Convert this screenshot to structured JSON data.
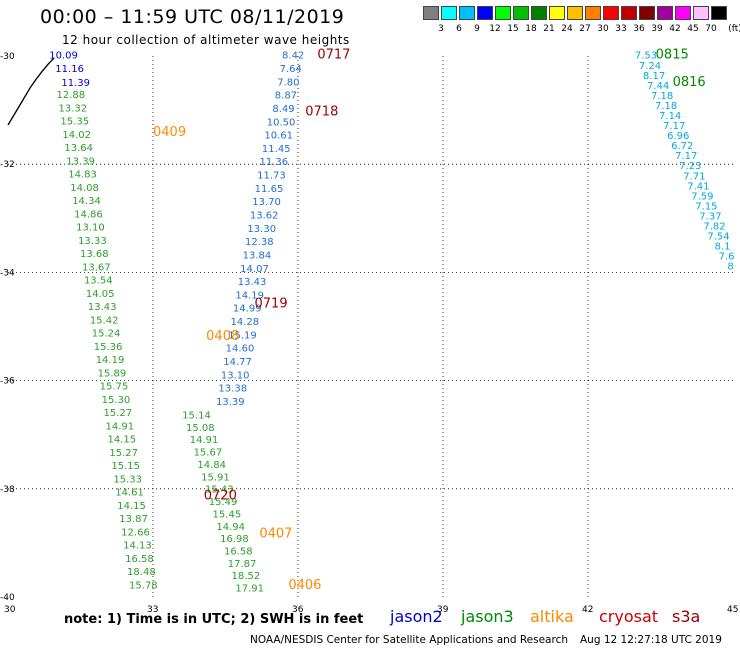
{
  "header": {
    "title": "00:00 – 11:59 UTC 08/11/2019",
    "subtitle": "12 hour collection of altimeter wave heights"
  },
  "legend": {
    "colors": [
      "#808080",
      "#00ffff",
      "#00bfff",
      "#0000ff",
      "#00ff00",
      "#00c000",
      "#008000",
      "#ffff00",
      "#ffc000",
      "#ff8000",
      "#ff0000",
      "#c00000",
      "#800000",
      "#a000a0",
      "#ff00ff",
      "#ffc0ff",
      "#000000"
    ],
    "labels": [
      "3",
      "6",
      "9",
      "12",
      "15",
      "18",
      "21",
      "24",
      "27",
      "30",
      "33",
      "36",
      "39",
      "42",
      "45",
      "70"
    ],
    "unit": "(ft)"
  },
  "axes": {
    "x_ticks": [
      "30",
      "33",
      "36",
      "39",
      "42",
      "45"
    ],
    "y_ticks": [
      "-30",
      "-32",
      "-34",
      "-36",
      "-38",
      "-40"
    ]
  },
  "satellites": [
    {
      "name": "jason2",
      "color": "#0000cc"
    },
    {
      "name": "jason3",
      "color": "#008800"
    },
    {
      "name": "altika",
      "color": "#ff8800"
    },
    {
      "name": "cryosat",
      "color": "#cc0000"
    },
    {
      "name": "s3a",
      "color": "#990000"
    }
  ],
  "note": "note: 1) Time is in UTC; 2) SWH is in feet",
  "footer_center": "NOAA/NESDIS Center for Satellite Applications and Research",
  "footer_time": "Aug 12 12:27:18 UTC 2019",
  "time_labels": [
    {
      "text": "0717",
      "color": "#990000",
      "lon": 36.4,
      "lat": -30.05
    },
    {
      "text": "0718",
      "color": "#990000",
      "lon": 36.15,
      "lat": -31.1
    },
    {
      "text": "0409",
      "color": "#ff8800",
      "lon": 33.0,
      "lat": -31.48
    },
    {
      "text": "0719",
      "color": "#990000",
      "lon": 35.1,
      "lat": -34.65
    },
    {
      "text": "0408",
      "color": "#ff8800",
      "lon": 34.1,
      "lat": -35.25
    },
    {
      "text": "0720",
      "color": "#990000",
      "lon": 34.05,
      "lat": -38.2
    },
    {
      "text": "0407",
      "color": "#ff8800",
      "lon": 35.2,
      "lat": -38.9
    },
    {
      "text": "0406",
      "color": "#ff8800",
      "lon": 35.8,
      "lat": -39.85
    },
    {
      "text": "0815",
      "color": "#008800",
      "lon": 43.4,
      "lat": -30.05
    },
    {
      "text": "0816",
      "color": "#008800",
      "lon": 43.75,
      "lat": -30.55
    }
  ],
  "tracks": [
    {
      "name": "jason2-track-west",
      "lon0": 31.15,
      "lat0": -30.05,
      "lon1": 31.4,
      "lat1": -30.55,
      "values": [
        "10.09",
        "11.16",
        "11.39"
      ],
      "color": "#0000cc"
    },
    {
      "name": "jason3-track-west",
      "lon0": 31.3,
      "lat0": -30.78,
      "lon1": 32.8,
      "lat1": -39.84,
      "values": [
        "12.88",
        "13.32",
        "15.35",
        "14.02",
        "13.64",
        "13.39",
        "14.83",
        "14.08",
        "14.34",
        "14.86",
        "13.10",
        "13.33",
        "13.68",
        "13.67",
        "13.54",
        "14.05",
        "13.43",
        "15.42",
        "15.24",
        "15.36",
        "14.19",
        "15.89",
        "15.75",
        "15.30",
        "15.27",
        "14.91",
        "14.15",
        "15.27",
        "15.15",
        "15.33",
        "14.61",
        "14.15",
        "13.87",
        "12.66",
        "14.13",
        "16.58",
        "18.48",
        "15.78"
      ],
      "color": "#2a9f2a"
    },
    {
      "name": "s3a-track",
      "lon0": 35.9,
      "lat0": -30.05,
      "lon1": 34.6,
      "lat1": -36.45,
      "values": [
        "8.42",
        "7.64",
        "7.80",
        "8.87",
        "8.49",
        "10.50",
        "10.61",
        "11.45",
        "11.36",
        "11.73",
        "11.65",
        "13.70",
        "13.62",
        "13.30",
        "12.38",
        "13.84",
        "14.07",
        "13.43",
        "14.19",
        "14.99",
        "14.28",
        "15.19",
        "14.60",
        "14.77",
        "13.10",
        "13.38",
        "13.39"
      ],
      "color": "#1e6fd0"
    },
    {
      "name": "altika-track-center",
      "lon0": 33.9,
      "lat0": -36.7,
      "lon1": 35.0,
      "lat1": -39.9,
      "values": [
        "15.14",
        "15.08",
        "14.91",
        "15.67",
        "14.84",
        "15.91",
        "15.43",
        "15.49",
        "15.45",
        "14.94",
        "16.98",
        "16.58",
        "17.87",
        "18.52",
        "17.91"
      ],
      "color": "#2a9f2a"
    },
    {
      "name": "jason3-track-east",
      "lon0": 43.2,
      "lat0": -30.05,
      "lon1": 44.95,
      "lat1": -33.95,
      "values": [
        "7.53",
        "7.24",
        "8.17",
        "7.44",
        "7.18",
        "7.18",
        "7.14",
        "7.17",
        "6.96",
        "6.72",
        "7.17",
        "7.23",
        "7.71",
        "7.41",
        "7.59",
        "7.15",
        "7.37",
        "7.82",
        "7.54",
        "8.1",
        "7.6",
        "8"
      ],
      "color": "#00aadd"
    }
  ]
}
